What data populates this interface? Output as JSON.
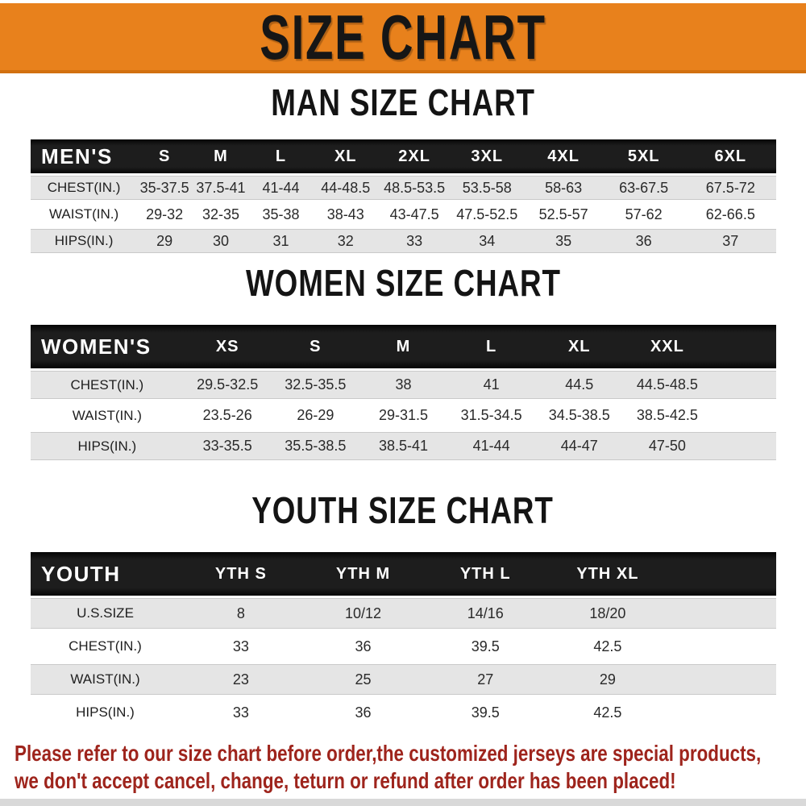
{
  "banner": {
    "title": "SIZE CHART",
    "bg_color": "#E8811C",
    "text_color": "#161616"
  },
  "sections": [
    {
      "title": "MAN SIZE CHART",
      "table": {
        "header_label": "MEN'S",
        "columns": [
          "S",
          "M",
          "L",
          "XL",
          "2XL",
          "3XL",
          "4XL",
          "5XL",
          "6XL"
        ],
        "rows": [
          {
            "label": "CHEST(IN.)",
            "values": [
              "35-37.5",
              "37.5-41",
              "41-44",
              "44-48.5",
              "48.5-53.5",
              "53.5-58",
              "58-63",
              "63-67.5",
              "67.5-72"
            ]
          },
          {
            "label": "WAIST(IN.)",
            "values": [
              "29-32",
              "32-35",
              "35-38",
              "38-43",
              "43-47.5",
              "47.5-52.5",
              "52.5-57",
              "57-62",
              "62-66.5"
            ]
          },
          {
            "label": "HIPS(IN.)",
            "values": [
              "29",
              "30",
              "31",
              "32",
              "33",
              "34",
              "35",
              "36",
              "37"
            ]
          }
        ]
      }
    },
    {
      "title": "WOMEN SIZE CHART",
      "table": {
        "header_label": "WOMEN'S",
        "columns": [
          "XS",
          "S",
          "M",
          "L",
          "XL",
          "XXL"
        ],
        "rows": [
          {
            "label": "CHEST(IN.)",
            "values": [
              "29.5-32.5",
              "32.5-35.5",
              "38",
              "41",
              "44.5",
              "44.5-48.5"
            ]
          },
          {
            "label": "WAIST(IN.)",
            "values": [
              "23.5-26",
              "26-29",
              "29-31.5",
              "31.5-34.5",
              "34.5-38.5",
              "38.5-42.5"
            ]
          },
          {
            "label": "HIPS(IN.)",
            "values": [
              "33-35.5",
              "35.5-38.5",
              "38.5-41",
              "41-44",
              "44-47",
              "47-50"
            ]
          }
        ]
      }
    },
    {
      "title": "YOUTH SIZE CHART",
      "table": {
        "header_label": "YOUTH",
        "columns": [
          "YTH S",
          "YTH M",
          "YTH L",
          "YTH XL"
        ],
        "rows": [
          {
            "label": "U.S.SIZE",
            "values": [
              "8",
              "10/12",
              "14/16",
              "18/20"
            ]
          },
          {
            "label": "CHEST(IN.)",
            "values": [
              "33",
              "36",
              "39.5",
              "42.5"
            ]
          },
          {
            "label": "WAIST(IN.)",
            "values": [
              "23",
              "25",
              "27",
              "29"
            ]
          },
          {
            "label": "HIPS(IN.)",
            "values": [
              "33",
              "36",
              "39.5",
              "42.5"
            ]
          }
        ]
      }
    }
  ],
  "footer": {
    "line1": "Please refer to our size chart before order,the customized jerseys are special products,",
    "line2": "we don't accept cancel, change, teturn or refund after order has been placed!",
    "text_color": "#9e241c"
  }
}
